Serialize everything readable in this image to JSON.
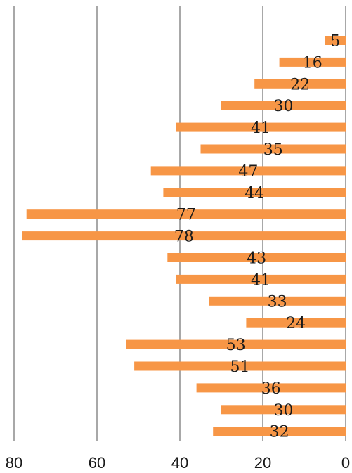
{
  "chart_data": {
    "type": "bar",
    "orientation": "horizontal",
    "x_reversed": true,
    "xlim": [
      0,
      80
    ],
    "xticks": [
      "0",
      "20",
      "40",
      "60",
      "80"
    ],
    "grid": "vertical",
    "bar_color": "#F79646",
    "title": "",
    "xlabel": "",
    "ylabel": "",
    "values": [
      5,
      16,
      22,
      30,
      41,
      35,
      47,
      44,
      77,
      78,
      43,
      41,
      33,
      24,
      53,
      51,
      36,
      30,
      32
    ],
    "labels": [
      "5",
      "16",
      "22",
      "30",
      "41",
      "35",
      "47",
      "44",
      "77",
      "78",
      "43",
      "41",
      "33",
      "24",
      "53",
      "51",
      "36",
      "30",
      "32"
    ]
  }
}
